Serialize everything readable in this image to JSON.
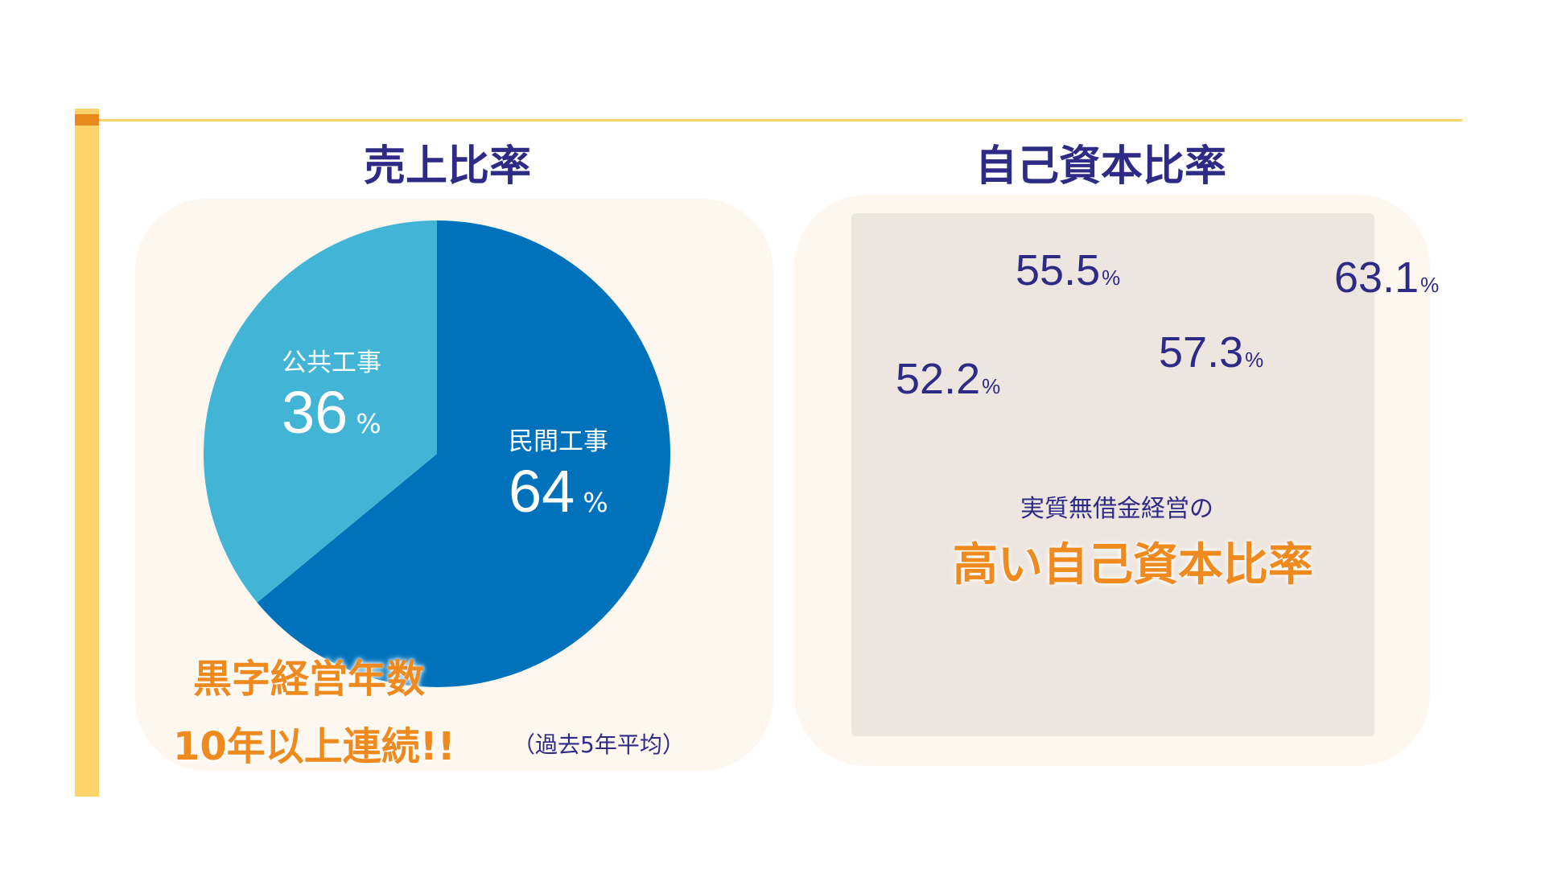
{
  "colors": {
    "accent_yellow": "#ffd36a",
    "accent_orange": "#e88a1c",
    "title_navy": "#2e2b86",
    "orange_text": "#ee8a1e",
    "panel_bg": "#fdf7ef",
    "chart_area_bg": "#ede5df",
    "private_slice": "#0072bc",
    "public_slice": "#42b5d7"
  },
  "sales": {
    "title": "売上比率",
    "caption_line1": "黒字経営年数",
    "caption_line2": "10年以上連続!!",
    "note": "（過去5年平均）"
  },
  "equity": {
    "title": "自己資本比率",
    "sub_caption": "実質無借金経営の",
    "big_caption": "高い自己資本比率"
  },
  "chart_data": [
    {
      "type": "pie",
      "title": "売上比率",
      "slices": [
        {
          "label": "民間工事",
          "value": 64,
          "value_text": "64",
          "unit": "%",
          "color": "#0072bc"
        },
        {
          "label": "公共工事",
          "value": 36,
          "value_text": "36",
          "unit": "%",
          "color": "#42b5d7"
        }
      ]
    },
    {
      "type": "scatter",
      "title": "自己資本比率",
      "values": [
        52.2,
        55.5,
        57.3,
        63.1
      ],
      "value_texts": [
        "52.2",
        "55.5",
        "57.3",
        "63.1"
      ],
      "unit": "%"
    }
  ]
}
